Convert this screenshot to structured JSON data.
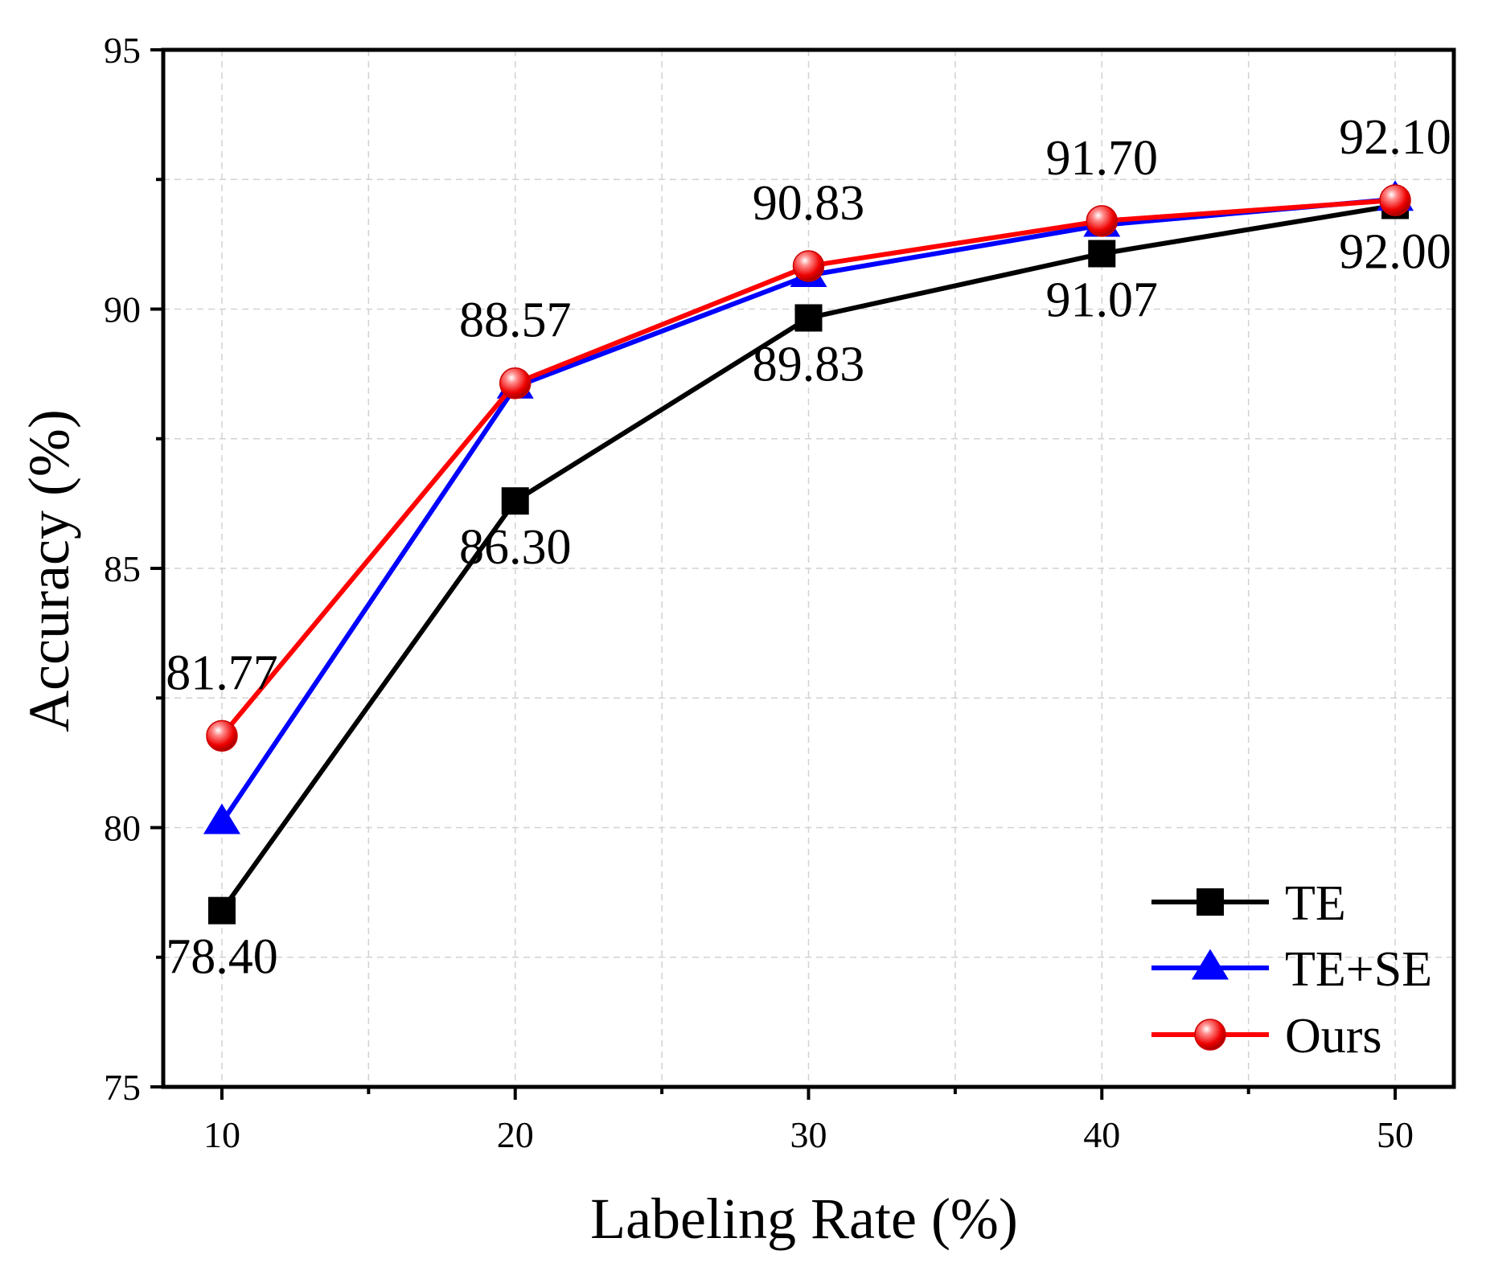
{
  "chart_data": {
    "type": "line",
    "title": "",
    "xlabel": "Labeling Rate (%)",
    "ylabel": "Accuracy (%)",
    "x": [
      10,
      20,
      30,
      40,
      50
    ],
    "x_ticks": [
      "10",
      "20",
      "30",
      "40",
      "50"
    ],
    "y_ticks": [
      "75",
      "80",
      "85",
      "90",
      "95"
    ],
    "xlim": [
      8,
      52
    ],
    "ylim": [
      75,
      95
    ],
    "grid": true,
    "legend_position": "bottom-right",
    "series": [
      {
        "name": "TE",
        "color": "#000000",
        "marker": "square",
        "values": [
          78.4,
          86.3,
          89.83,
          91.07,
          92.0
        ],
        "labels": [
          "78.40",
          "86.30",
          "89.83",
          "91.07",
          "92.00"
        ],
        "label_position": "below"
      },
      {
        "name": "TE+SE",
        "color": "#0000ff",
        "marker": "triangle",
        "values": [
          80.1,
          88.5,
          90.65,
          91.62,
          92.12
        ]
      },
      {
        "name": "Ours",
        "color": "#ff0000",
        "marker": "circle",
        "values": [
          81.77,
          88.57,
          90.83,
          91.7,
          92.1
        ],
        "labels": [
          "81.77",
          "88.57",
          "90.83",
          "91.70",
          "92.10"
        ],
        "label_position": "above"
      }
    ]
  }
}
